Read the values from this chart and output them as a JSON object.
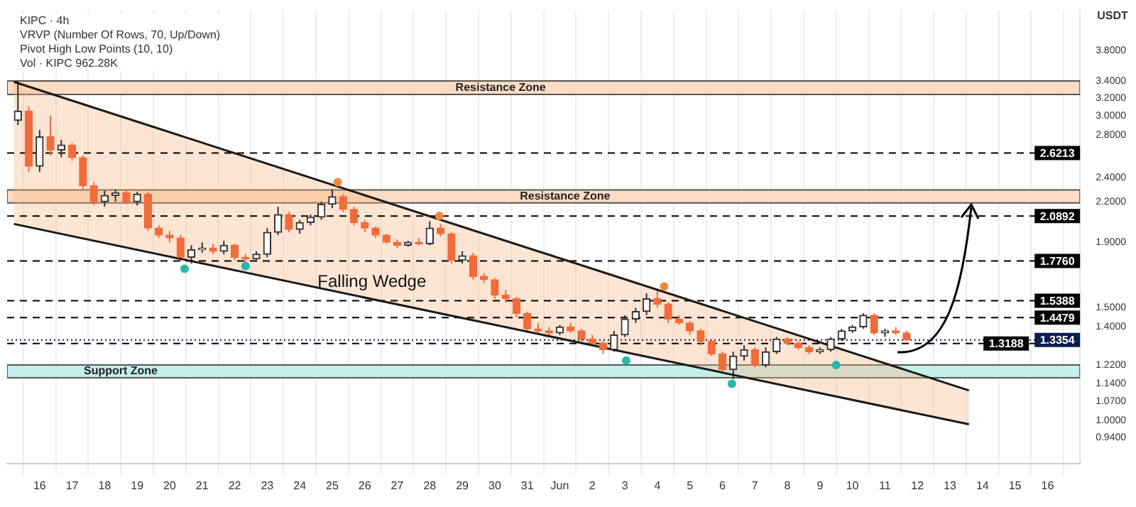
{
  "chart_data": {
    "type": "candlestick",
    "title": "KIPC · 4h",
    "ylabel": "USDT",
    "colors": [
      "#333333",
      "#f26b3a",
      "#333333",
      "#f26b3a",
      "#333333",
      "#f26b3a",
      "#f26b3a",
      "#f26b3a",
      "#333333",
      "#333333",
      "#f26b3a",
      "#333333",
      "#f26b3a",
      "#f26b3a",
      "#f26b3a",
      "#f26b3a",
      "#333333",
      "#333333",
      "#f26b3a",
      "#333333",
      "#f26b3a",
      "#f26b3a",
      "#333333",
      "#333333",
      "#333333",
      "#f26b3a",
      "#333333",
      "#333333",
      "#333333",
      "#333333",
      "#f26b3a",
      "#f26b3a",
      "#f26b3a",
      "#f26b3a",
      "#f26b3a",
      "#f26b3a",
      "#333333",
      "#f26b3a",
      "#333333",
      "#f26b3a",
      "#f26b3a",
      "#333333",
      "#f26b3a",
      "#f26b3a",
      "#f26b3a",
      "#f26b3a",
      "#f26b3a",
      "#f26b3a",
      "#f26b3a",
      "#f26b3a",
      "#333333",
      "#f26b3a",
      "#f26b3a",
      "#f26b3a",
      "#f26b3a",
      "#333333",
      "#333333",
      "#333333",
      "#333333",
      "#f26b3a",
      "#f26b3a",
      "#f26b3a",
      "#f26b3a",
      "#f26b3a",
      "#f26b3a",
      "#f26b3a",
      "#333333",
      "#333333",
      "#f26b3a",
      "#333333",
      "#333333",
      "#f26b3a",
      "#f26b3a",
      "#f26b3a",
      "#333333",
      "#333333",
      "#333333",
      "#333333",
      "#333333",
      "#f26b3a",
      "#333333",
      "#f26b3a",
      "#f26b3a"
    ],
    "annotations": [
      "VRVP (Number Of Rows, 70, Up/Down)",
      "Pivot High Low Points (10, 10)",
      "Vol · KIPC 962.28K",
      "Falling Wedge"
    ],
    "x": [
      "--05-15T08:00",
      "--05-15T16:00",
      "--05-16T00:00",
      "--05-16T08:00",
      "--05-16T16:00",
      "--05-17T00:00",
      "--05-17T08:00",
      "--05-17T16:00",
      "--05-18T00:00",
      "--05-18T08:00",
      "--05-18T16:00",
      "--05-19T00:00",
      "--05-19T08:00",
      "--05-19T16:00",
      "--05-20T00:00",
      "--05-20T08:00",
      "--05-20T16:00",
      "--05-21T00:00",
      "--05-21T08:00",
      "--05-21T16:00",
      "--05-22T00:00",
      "--05-22T08:00",
      "--05-22T16:00",
      "--05-23T00:00",
      "--05-23T08:00",
      "--05-23T16:00",
      "--05-24T00:00",
      "--05-24T08:00",
      "--05-24T16:00",
      "--05-25T00:00",
      "--05-25T08:00",
      "--05-25T16:00",
      "--05-26T00:00",
      "--05-26T08:00",
      "--05-26T16:00",
      "--05-27T00:00",
      "--05-27T08:00",
      "--05-27T16:00",
      "--05-28T00:00",
      "--05-28T08:00",
      "--05-28T16:00",
      "--05-29T00:00",
      "--05-29T08:00",
      "--05-29T16:00",
      "--05-30T00:00",
      "--05-30T08:00",
      "--05-30T16:00",
      "--05-31T00:00",
      "--05-31T08:00",
      "--05-31T16:00",
      "--06-01T00:00",
      "--06-01T08:00",
      "--06-01T16:00",
      "--06-02T00:00",
      "--06-02T08:00",
      "--06-02T16:00",
      "--06-03T00:00",
      "--06-03T08:00",
      "--06-03T16:00",
      "--06-04T00:00",
      "--06-04T08:00",
      "--06-04T16:00",
      "--06-05T00:00",
      "--06-05T08:00",
      "--06-05T16:00",
      "--06-06T00:00",
      "--06-06T08:00",
      "--06-06T16:00",
      "--06-07T00:00",
      "--06-07T08:00",
      "--06-07T16:00",
      "--06-08T00:00",
      "--06-08T08:00",
      "--06-08T16:00",
      "--06-09T00:00",
      "--06-09T08:00",
      "--06-09T16:00",
      "--06-10T00:00",
      "--06-10T08:00",
      "--06-10T16:00",
      "--06-11T00:00",
      "--06-11T08:00",
      "--06-11T16:00"
    ],
    "ohlc": [
      [
        2.95,
        3.4,
        2.9,
        3.05
      ],
      [
        3.05,
        3.1,
        2.45,
        2.5
      ],
      [
        2.5,
        2.85,
        2.45,
        2.78
      ],
      [
        2.78,
        3.0,
        2.6,
        2.65
      ],
      [
        2.65,
        2.75,
        2.58,
        2.7
      ],
      [
        2.7,
        2.72,
        2.55,
        2.58
      ],
      [
        2.58,
        2.6,
        2.3,
        2.33
      ],
      [
        2.33,
        2.36,
        2.17,
        2.2
      ],
      [
        2.2,
        2.29,
        2.16,
        2.25
      ],
      [
        2.25,
        2.3,
        2.2,
        2.27
      ],
      [
        2.27,
        2.3,
        2.18,
        2.2
      ],
      [
        2.2,
        2.28,
        2.17,
        2.26
      ],
      [
        2.26,
        2.28,
        1.98,
        2.0
      ],
      [
        2.0,
        2.02,
        1.93,
        1.95
      ],
      [
        1.95,
        1.98,
        1.9,
        1.93
      ],
      [
        1.93,
        1.95,
        1.78,
        1.8
      ],
      [
        1.8,
        1.88,
        1.76,
        1.85
      ],
      [
        1.85,
        1.9,
        1.83,
        1.86
      ],
      [
        1.86,
        1.89,
        1.82,
        1.84
      ],
      [
        1.84,
        1.91,
        1.82,
        1.88
      ],
      [
        1.88,
        1.89,
        1.78,
        1.8
      ],
      [
        1.8,
        1.82,
        1.76,
        1.79
      ],
      [
        1.79,
        1.84,
        1.77,
        1.82
      ],
      [
        1.82,
        2.0,
        1.8,
        1.97
      ],
      [
        1.97,
        2.16,
        1.95,
        2.1
      ],
      [
        2.1,
        2.12,
        1.97,
        1.99
      ],
      [
        1.99,
        2.06,
        1.96,
        2.04
      ],
      [
        2.04,
        2.1,
        2.02,
        2.08
      ],
      [
        2.08,
        2.2,
        2.06,
        2.18
      ],
      [
        2.18,
        2.3,
        2.15,
        2.24
      ],
      [
        2.24,
        2.26,
        2.12,
        2.14
      ],
      [
        2.14,
        2.16,
        2.02,
        2.04
      ],
      [
        2.04,
        2.06,
        1.97,
        2.0
      ],
      [
        2.0,
        2.01,
        1.93,
        1.95
      ],
      [
        1.95,
        1.96,
        1.89,
        1.9
      ],
      [
        1.9,
        1.92,
        1.86,
        1.88
      ],
      [
        1.88,
        1.91,
        1.87,
        1.9
      ],
      [
        1.9,
        1.93,
        1.88,
        1.89
      ],
      [
        1.89,
        2.05,
        1.88,
        2.0
      ],
      [
        2.0,
        2.03,
        1.94,
        1.96
      ],
      [
        1.96,
        1.97,
        1.76,
        1.78
      ],
      [
        1.78,
        1.84,
        1.76,
        1.81
      ],
      [
        1.81,
        1.83,
        1.66,
        1.68
      ],
      [
        1.68,
        1.7,
        1.64,
        1.66
      ],
      [
        1.66,
        1.67,
        1.55,
        1.57
      ],
      [
        1.57,
        1.6,
        1.53,
        1.55
      ],
      [
        1.55,
        1.56,
        1.45,
        1.47
      ],
      [
        1.47,
        1.48,
        1.37,
        1.39
      ],
      [
        1.39,
        1.42,
        1.36,
        1.38
      ],
      [
        1.38,
        1.4,
        1.35,
        1.37
      ],
      [
        1.37,
        1.41,
        1.36,
        1.4
      ],
      [
        1.4,
        1.42,
        1.37,
        1.38
      ],
      [
        1.38,
        1.39,
        1.33,
        1.34
      ],
      [
        1.34,
        1.36,
        1.31,
        1.32
      ],
      [
        1.32,
        1.33,
        1.27,
        1.29
      ],
      [
        1.29,
        1.38,
        1.28,
        1.36
      ],
      [
        1.36,
        1.46,
        1.35,
        1.44
      ],
      [
        1.44,
        1.5,
        1.42,
        1.48
      ],
      [
        1.48,
        1.58,
        1.46,
        1.55
      ],
      [
        1.55,
        1.6,
        1.5,
        1.52
      ],
      [
        1.52,
        1.53,
        1.42,
        1.44
      ],
      [
        1.44,
        1.46,
        1.41,
        1.42
      ],
      [
        1.42,
        1.43,
        1.36,
        1.38
      ],
      [
        1.38,
        1.39,
        1.31,
        1.33
      ],
      [
        1.33,
        1.34,
        1.26,
        1.27
      ],
      [
        1.27,
        1.28,
        1.19,
        1.2
      ],
      [
        1.2,
        1.28,
        1.16,
        1.26
      ],
      [
        1.26,
        1.31,
        1.24,
        1.29
      ],
      [
        1.29,
        1.3,
        1.21,
        1.22
      ],
      [
        1.22,
        1.3,
        1.21,
        1.28
      ],
      [
        1.28,
        1.35,
        1.27,
        1.34
      ],
      [
        1.34,
        1.35,
        1.31,
        1.32
      ],
      [
        1.32,
        1.33,
        1.29,
        1.3
      ],
      [
        1.3,
        1.31,
        1.27,
        1.28
      ],
      [
        1.28,
        1.3,
        1.27,
        1.29
      ],
      [
        1.29,
        1.35,
        1.28,
        1.34
      ],
      [
        1.34,
        1.39,
        1.33,
        1.38
      ],
      [
        1.38,
        1.41,
        1.37,
        1.4
      ],
      [
        1.4,
        1.47,
        1.39,
        1.46
      ],
      [
        1.46,
        1.47,
        1.36,
        1.37
      ],
      [
        1.37,
        1.39,
        1.35,
        1.38
      ],
      [
        1.38,
        1.4,
        1.36,
        1.37
      ],
      [
        1.37,
        1.38,
        1.33,
        1.3354
      ]
    ],
    "series": [
      {
        "type": "line",
        "color": "#1a1a1a",
        "x": [
          "--05-15T05:00",
          "--06-13T14:00"
        ],
        "values": [
          3.39,
          1.113
        ]
      },
      {
        "type": "line",
        "color": "#1a1a1a",
        "x": [
          "--05-15T05:00",
          "--06-13T14:00"
        ],
        "values": [
          2.03,
          0.985
        ],
        "lower": [
          2.03,
          0.985
        ],
        "upper": [
          3.39,
          1.113
        ]
      },
      {
        "type": "scatter",
        "marker": "circle",
        "color": "#f5873a",
        "x": [
          "--05-25T04:00",
          "--05-28T07:00",
          "--06-04T05:00"
        ],
        "values": [
          2.36,
          2.09,
          1.62
        ]
      },
      {
        "type": "scatter",
        "marker": "circle",
        "color": "#26b8a8",
        "x": [
          "--05-20T11:00",
          "--05-22T08:00",
          "--06-03T01:00",
          "--06-06T07:00",
          "--06-09T12:00"
        ],
        "values": [
          1.727,
          1.744,
          1.24,
          1.14,
          1.22
        ]
      }
    ],
    "bands": [
      {
        "axis": "y",
        "from": 3.24,
        "to": 3.4,
        "label": "Resistance Zone",
        "color": "#fcdcc4"
      },
      {
        "axis": "y",
        "from": 2.19,
        "to": 2.295,
        "label": "Resistance Zone",
        "color": "#fcdcc4"
      },
      {
        "axis": "y",
        "from": 1.165,
        "to": 1.22,
        "label": "Support Zone",
        "color": "#c4f0ea"
      }
    ],
    "ref_lines": [
      {
        "axis": "y",
        "value": 2.6213,
        "label": "2.6213",
        "line_style": "dashed",
        "color": "#000000"
      },
      {
        "axis": "y",
        "value": 2.0892,
        "label": "2.0892",
        "line_style": "dashed",
        "color": "#000000"
      },
      {
        "axis": "y",
        "value": 1.776,
        "label": "1.7760",
        "line_style": "dashed",
        "color": "#000000"
      },
      {
        "axis": "y",
        "value": 1.5388,
        "label": "1.5388",
        "line_style": "dashed",
        "color": "#000000"
      },
      {
        "axis": "y",
        "value": 1.4479,
        "label": "1.4479",
        "line_style": "dashed",
        "color": "#000000"
      },
      {
        "axis": "y",
        "value": 1.3354,
        "label": "1.3354",
        "line_style": "dotted",
        "color": "#0d1b4d"
      },
      {
        "axis": "y",
        "value": 1.3188,
        "label": "1.3188",
        "line_style": "dashed",
        "color": "#000000"
      }
    ],
    "log": "y",
    "grid": "x",
    "ylim": [
      0.855,
      4.39
    ],
    "yticks": [
      {
        "value": 0.94,
        "label": "0.9400"
      },
      {
        "value": 1,
        "label": "1.0000"
      },
      {
        "value": 1.07,
        "label": "1.0700"
      },
      {
        "value": 1.14,
        "label": "1.1400"
      },
      {
        "value": 1.22,
        "label": "1.2200"
      },
      {
        "value": 1.4,
        "label": "1.4000"
      },
      {
        "value": 1.5,
        "label": "1.5000"
      },
      {
        "value": 1.9,
        "label": "1.9000"
      },
      {
        "value": 2.2,
        "label": "2.2000"
      },
      {
        "value": 2.4,
        "label": "2.4000"
      },
      {
        "value": 2.8,
        "label": "2.8000"
      },
      {
        "value": 3,
        "label": "3.0000"
      },
      {
        "value": 3.2,
        "label": "3.2000"
      },
      {
        "value": 3.4,
        "label": "3.4000"
      },
      {
        "value": 3.8,
        "label": "3.8000"
      }
    ],
    "xlim": [
      "--05-15T00:00",
      "--06-17T00:00"
    ],
    "xticks": [
      {
        "value": "--05-16",
        "label": "16"
      },
      {
        "value": "--05-17",
        "label": "17"
      },
      {
        "value": "--05-18",
        "label": "18"
      },
      {
        "value": "--05-19",
        "label": "19"
      },
      {
        "value": "--05-20",
        "label": "20"
      },
      {
        "value": "--05-21",
        "label": "21"
      },
      {
        "value": "--05-22",
        "label": "22"
      },
      {
        "value": "--05-23",
        "label": "23"
      },
      {
        "value": "--05-24",
        "label": "24"
      },
      {
        "value": "--05-25",
        "label": "25"
      },
      {
        "value": "--05-26",
        "label": "26"
      },
      {
        "value": "--05-27",
        "label": "27"
      },
      {
        "value": "--05-28",
        "label": "28"
      },
      {
        "value": "--05-29",
        "label": "29"
      },
      {
        "value": "--05-30",
        "label": "30"
      },
      {
        "value": "--05-31",
        "label": "31"
      },
      {
        "value": "--06-01",
        "label": "Jun"
      },
      {
        "value": "--06-02",
        "label": "2"
      },
      {
        "value": "--06-03",
        "label": "3"
      },
      {
        "value": "--06-04",
        "label": "4"
      },
      {
        "value": "--06-05",
        "label": "5"
      },
      {
        "value": "--06-06",
        "label": "6"
      },
      {
        "value": "--06-07",
        "label": "7"
      },
      {
        "value": "--06-08",
        "label": "8"
      },
      {
        "value": "--06-09",
        "label": "9"
      },
      {
        "value": "--06-10",
        "label": "10"
      },
      {
        "value": "--06-11",
        "label": "11"
      },
      {
        "value": "--06-12",
        "label": "12"
      },
      {
        "value": "--06-13",
        "label": "13"
      },
      {
        "value": "--06-14",
        "label": "14"
      },
      {
        "value": "--06-15",
        "label": "15"
      },
      {
        "value": "--06-16",
        "label": "16"
      }
    ]
  }
}
